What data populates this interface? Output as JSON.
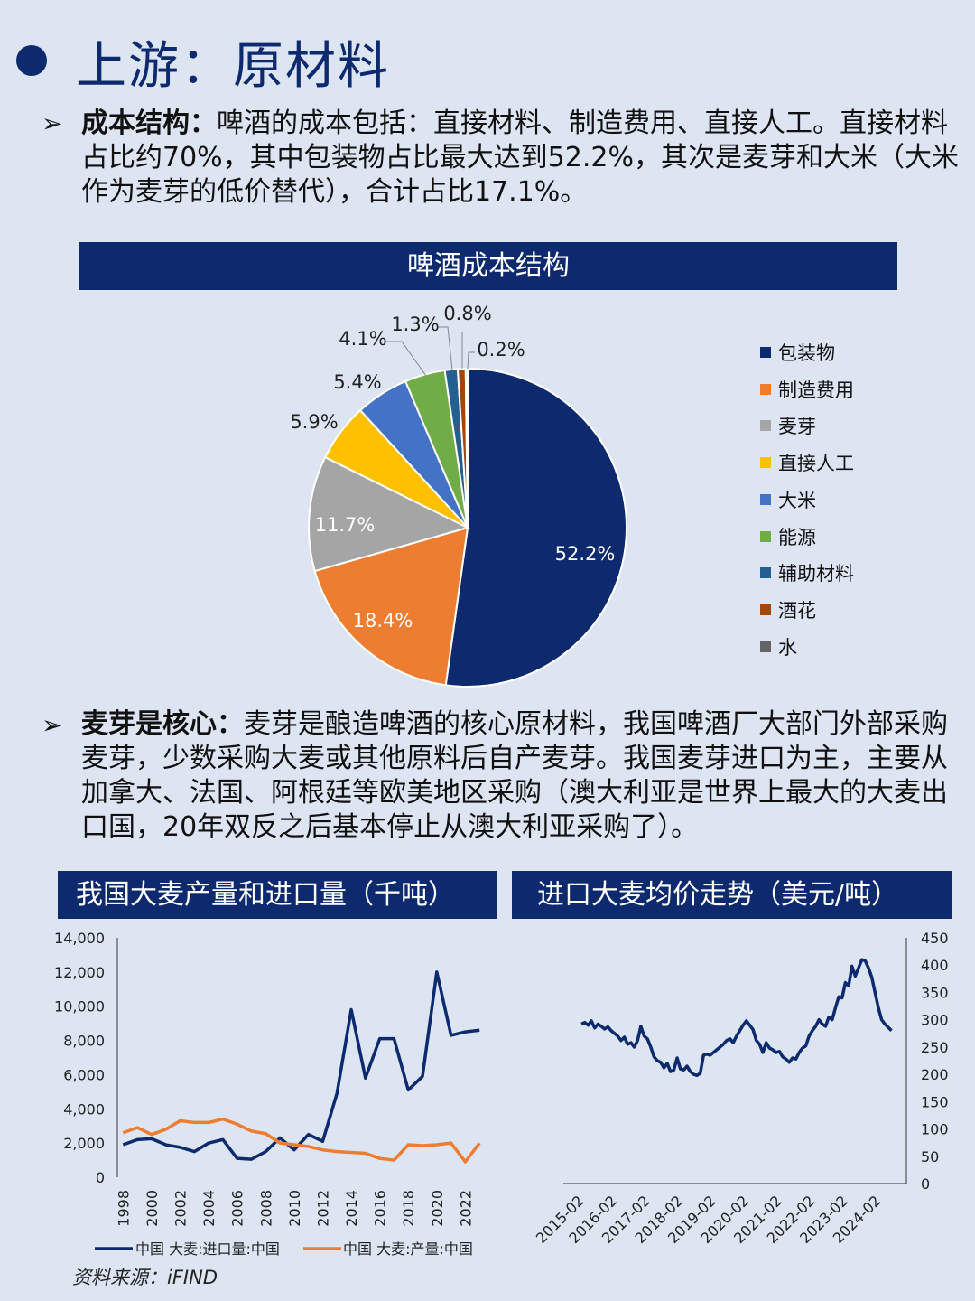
{
  "header": {
    "title": "上游：原材料"
  },
  "section1": {
    "bullet": "➢",
    "heading": "成本结构：",
    "text": "啤酒的成本包括：直接材料、制造费用、直接人工。直接材料占比约70%，其中包装物占比最大达到52.2%，其次是麦芽和大米（大米作为麦芽的低价替代），合计占比17.1%。"
  },
  "section2": {
    "bullet": "➢",
    "heading": "麦芽是核心：",
    "text": "麦芽是酿造啤酒的核心原材料，我国啤酒厂大部门外部采购麦芽，少数采购大麦或其他原料后自产麦芽。我国麦芽进口为主，主要从加拿大、法国、阿根廷等欧美地区采购（澳大利亚是世界上最大的大麦出口国，20年双反之后基本停止从澳大利亚采购了）。"
  },
  "source": "资料来源：iFIND",
  "chart_data": [
    {
      "type": "pie",
      "title": "啤酒成本结构",
      "labels": [
        "包装物",
        "制造费用",
        "麦芽",
        "直接人工",
        "大米",
        "能源",
        "辅助材料",
        "酒花",
        "水"
      ],
      "values": [
        52.2,
        18.4,
        11.7,
        5.9,
        5.4,
        4.1,
        1.3,
        0.8,
        0.2
      ],
      "value_labels": [
        "52.2%",
        "18.4%",
        "11.7%",
        "5.9%",
        "5.4%",
        "4.1%",
        "1.3%",
        "0.8%",
        "0.2%"
      ],
      "colors": [
        "#0d2a6e",
        "#ed7d31",
        "#a5a5a5",
        "#ffc000",
        "#4472c4",
        "#70ad47",
        "#255e91",
        "#9e480e",
        "#636363"
      ],
      "legend_position": "right"
    },
    {
      "type": "line",
      "title": "我国大麦产量和进口量（千吨）",
      "x": [
        1998,
        1999,
        2000,
        2001,
        2002,
        2003,
        2004,
        2005,
        2006,
        2007,
        2008,
        2009,
        2010,
        2011,
        2012,
        2013,
        2014,
        2015,
        2016,
        2017,
        2018,
        2019,
        2020,
        2021,
        2022,
        2023
      ],
      "x_ticks": [
        "1998",
        "2000",
        "2002",
        "2004",
        "2006",
        "2008",
        "2010",
        "2012",
        "2014",
        "2016",
        "2018",
        "2020",
        "2022"
      ],
      "y_ticks": [
        "0",
        "2,000",
        "4,000",
        "6,000",
        "8,000",
        "10,000",
        "12,000",
        "14,000"
      ],
      "ylim": [
        0,
        14000
      ],
      "series": [
        {
          "name": "中国 大麦:进口量:中国",
          "color": "#0d2a6e",
          "values": [
            1900,
            2200,
            2250,
            1900,
            1750,
            1500,
            2000,
            2200,
            1100,
            1050,
            1500,
            2300,
            1600,
            2500,
            2100,
            4900,
            9800,
            5800,
            8100,
            8100,
            5100,
            5900,
            12000,
            8300,
            8500,
            8600
          ]
        },
        {
          "name": "中国 大麦:产量:中国",
          "color": "#ed7d31",
          "values": [
            2600,
            2900,
            2500,
            2800,
            3300,
            3200,
            3200,
            3400,
            3100,
            2700,
            2550,
            2000,
            1900,
            1800,
            1600,
            1500,
            1450,
            1400,
            1100,
            1000,
            1900,
            1850,
            1900,
            2000,
            900,
            2000
          ]
        }
      ],
      "legend_position": "bottom"
    },
    {
      "type": "line",
      "title": "进口大麦均价走势（美元/吨）",
      "x_ticks": [
        "2015-02",
        "2016-02",
        "2017-02",
        "2018-02",
        "2019-02",
        "2020-02",
        "2021-02",
        "2022-02",
        "2023-02",
        "2024-02"
      ],
      "y_ticks": [
        "0",
        "50",
        "100",
        "150",
        "200",
        "250",
        "300",
        "350",
        "400",
        "450"
      ],
      "ylim": [
        0,
        450
      ],
      "y_axis_side": "right",
      "series": [
        {
          "name": "",
          "color": "#0d2a6e",
          "x": [
            2015.0,
            2015.1,
            2015.2,
            2015.3,
            2015.4,
            2015.5,
            2015.6,
            2015.7,
            2015.8,
            2015.9,
            2016.0,
            2016.1,
            2016.2,
            2016.3,
            2016.4,
            2016.5,
            2016.6,
            2016.7,
            2016.8,
            2016.9,
            2017.0,
            2017.1,
            2017.2,
            2017.3,
            2017.4,
            2017.5,
            2017.6,
            2017.7,
            2017.8,
            2017.9,
            2018.0,
            2018.1,
            2018.2,
            2018.3,
            2018.4,
            2018.5,
            2018.6,
            2018.7,
            2018.8,
            2018.9,
            2019.0,
            2019.1,
            2019.2,
            2019.3,
            2019.4,
            2019.5,
            2019.6,
            2019.7,
            2019.8,
            2019.9,
            2020.0,
            2020.1,
            2020.2,
            2020.3,
            2020.4,
            2020.5,
            2020.6,
            2020.7,
            2020.8,
            2020.9,
            2021.0,
            2021.1,
            2021.2,
            2021.3,
            2021.4,
            2021.5,
            2021.6,
            2021.7,
            2021.8,
            2021.9,
            2022.0,
            2022.1,
            2022.2,
            2022.3,
            2022.4,
            2022.5,
            2022.6,
            2022.7,
            2022.8,
            2022.9,
            2023.0,
            2023.1,
            2023.2,
            2023.3,
            2023.4,
            2023.5,
            2023.6,
            2023.7,
            2023.8,
            2023.9,
            2024.0,
            2024.1,
            2024.2,
            2024.3,
            2024.4
          ],
          "values": [
            292,
            295,
            290,
            298,
            285,
            292,
            288,
            283,
            287,
            280,
            275,
            270,
            262,
            268,
            255,
            258,
            250,
            262,
            288,
            270,
            265,
            250,
            232,
            225,
            222,
            212,
            220,
            205,
            208,
            230,
            210,
            208,
            215,
            205,
            200,
            198,
            202,
            235,
            237,
            235,
            240,
            245,
            250,
            255,
            262,
            265,
            258,
            270,
            280,
            290,
            298,
            290,
            282,
            262,
            255,
            240,
            258,
            248,
            245,
            240,
            242,
            232,
            228,
            222,
            230,
            228,
            240,
            248,
            252,
            270,
            280,
            288,
            300,
            292,
            288,
            305,
            300,
            322,
            342,
            340,
            368,
            362,
            398,
            380,
            395,
            410,
            408,
            395,
            378,
            350,
            322,
            300,
            292,
            286,
            280
          ]
        }
      ]
    }
  ]
}
